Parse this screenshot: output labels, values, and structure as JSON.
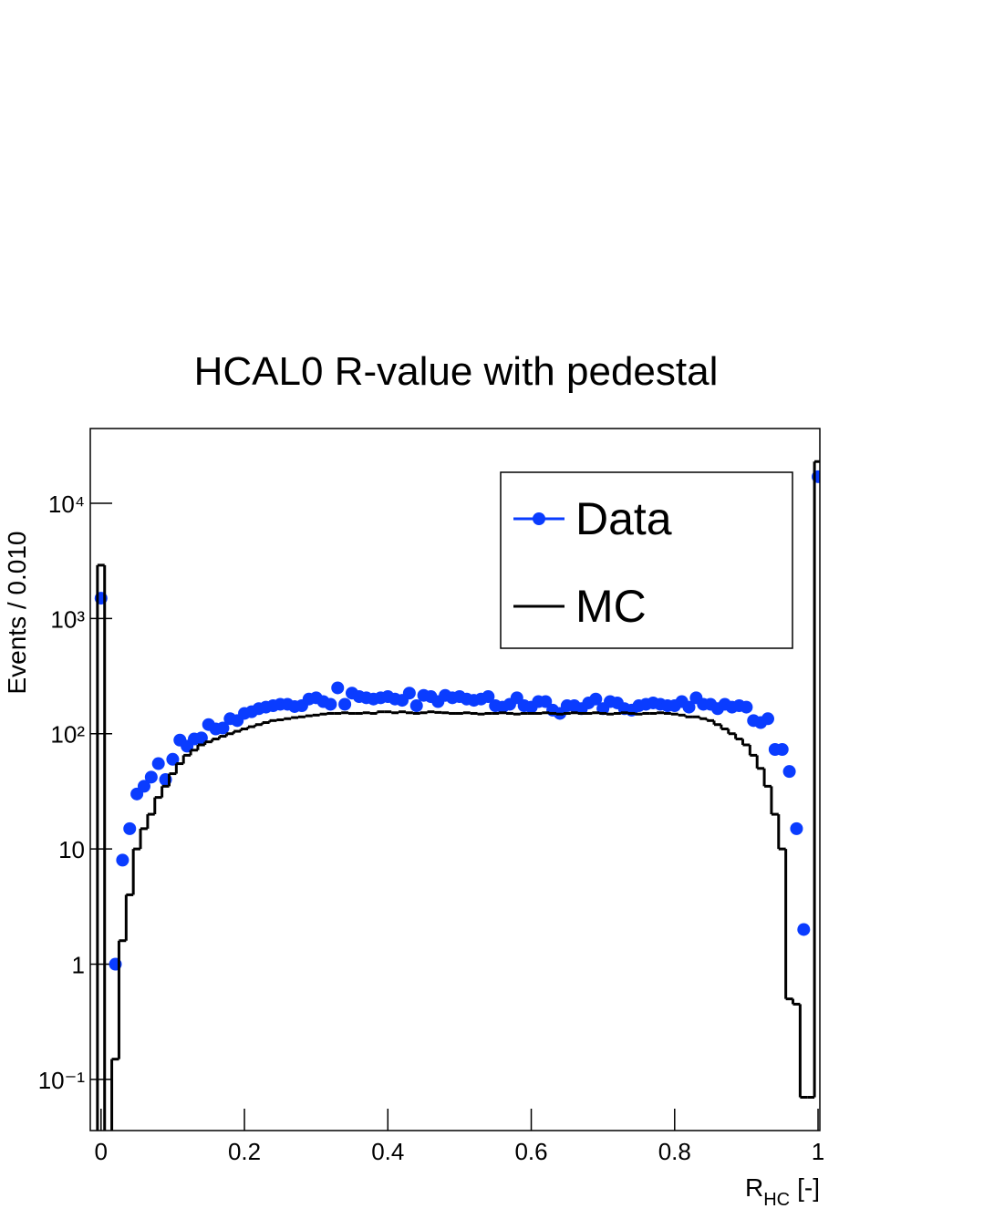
{
  "chart_data": {
    "type": "scatter_step",
    "title": "HCAL0 R-value with pedestal",
    "ylabel": "Events / 0.010",
    "xlabel": [
      "R",
      "HC",
      "[-]"
    ],
    "log_y": true,
    "legend": "upper right",
    "xlim": [
      -0.015,
      1.0025
    ],
    "ylim": [
      0.036,
      44500
    ],
    "xticks": [
      0,
      0.2,
      0.4,
      0.6,
      0.8,
      1
    ],
    "yticks": [
      {
        "value": 0.1,
        "label": "10⁻¹"
      },
      1,
      10,
      {
        "value": 100,
        "label": "10²"
      },
      {
        "value": 1000,
        "label": "10³"
      },
      {
        "value": 10000,
        "label": "10⁴"
      }
    ],
    "bin_width": 0.01,
    "x": [
      0,
      0.01,
      0.02,
      0.03,
      0.04,
      0.05,
      0.06,
      0.07,
      0.08,
      0.09,
      0.1,
      0.11,
      0.12,
      0.13,
      0.14,
      0.15,
      0.16,
      0.17,
      0.18,
      0.19,
      0.2,
      0.21,
      0.22,
      0.23,
      0.24,
      0.25,
      0.26,
      0.27,
      0.28,
      0.29,
      0.3,
      0.31,
      0.32,
      0.33,
      0.34,
      0.35,
      0.36,
      0.37,
      0.38,
      0.39,
      0.4,
      0.41,
      0.42,
      0.43,
      0.44,
      0.45,
      0.46,
      0.47,
      0.48,
      0.49,
      0.5,
      0.51,
      0.52,
      0.53,
      0.54,
      0.55,
      0.56,
      0.57,
      0.58,
      0.59,
      0.6,
      0.61,
      0.62,
      0.63,
      0.64,
      0.65,
      0.66,
      0.67,
      0.68,
      0.69,
      0.7,
      0.71,
      0.72,
      0.73,
      0.74,
      0.75,
      0.76,
      0.77,
      0.78,
      0.79,
      0.8,
      0.81,
      0.82,
      0.83,
      0.84,
      0.85,
      0.86,
      0.87,
      0.88,
      0.89,
      0.9,
      0.91,
      0.92,
      0.93,
      0.94,
      0.95,
      0.96,
      0.97,
      0.98,
      0.99,
      1
    ],
    "series": [
      {
        "name": "Data",
        "color": "#0a3cff",
        "style": "points",
        "values": [
          1500,
          null,
          1,
          8,
          15,
          30,
          35,
          42,
          55,
          40,
          60,
          88,
          78,
          90,
          92,
          120,
          110,
          112,
          135,
          130,
          150,
          155,
          165,
          170,
          175,
          180,
          180,
          172,
          175,
          200,
          205,
          190,
          180,
          250,
          180,
          225,
          210,
          205,
          200,
          205,
          210,
          200,
          195,
          225,
          175,
          215,
          210,
          190,
          215,
          205,
          210,
          200,
          195,
          200,
          210,
          175,
          170,
          180,
          205,
          175,
          170,
          190,
          190,
          160,
          150,
          175,
          175,
          165,
          185,
          200,
          165,
          190,
          185,
          165,
          160,
          175,
          180,
          185,
          180,
          175,
          175,
          190,
          170,
          205,
          180,
          180,
          165,
          180,
          170,
          175,
          170,
          130,
          125,
          135,
          73,
          73,
          47,
          15,
          2,
          null,
          17000
        ]
      },
      {
        "name": "MC",
        "color": "#000000",
        "style": "step",
        "values": [
          2900,
          null,
          0.15,
          1.6,
          4,
          10,
          15,
          20,
          28,
          35,
          45,
          55,
          65,
          72,
          80,
          85,
          90,
          95,
          100,
          105,
          110,
          115,
          120,
          125,
          130,
          132,
          135,
          138,
          140,
          143,
          145,
          148,
          150,
          150,
          152,
          150,
          150,
          152,
          150,
          155,
          155,
          152,
          155,
          152,
          150,
          152,
          155,
          153,
          152,
          150,
          150,
          152,
          150,
          148,
          150,
          150,
          152,
          150,
          148,
          150,
          150,
          150,
          152,
          150,
          148,
          150,
          152,
          150,
          150,
          152,
          150,
          148,
          150,
          152,
          150,
          148,
          150,
          150,
          152,
          150,
          148,
          145,
          140,
          140,
          135,
          130,
          120,
          110,
          100,
          90,
          80,
          65,
          50,
          35,
          20,
          10,
          0.5,
          0.45,
          0.07,
          0.07,
          23000
        ]
      }
    ]
  }
}
